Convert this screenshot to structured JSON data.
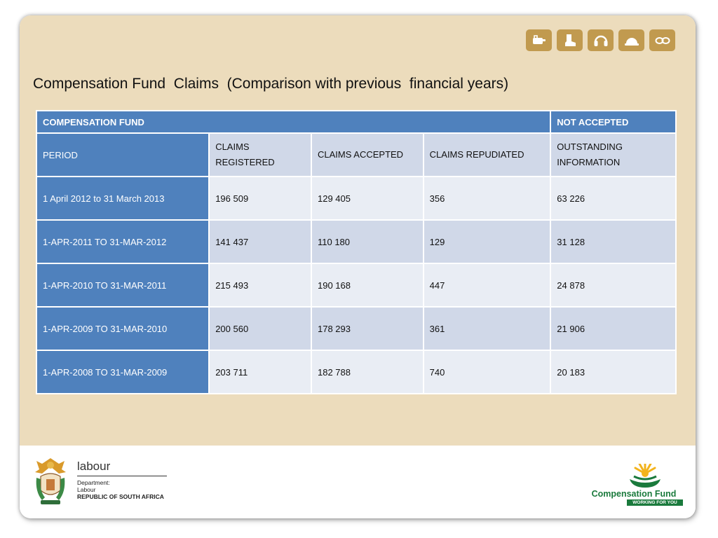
{
  "title": "Compensation Fund  Claims  (Comparison with previous  financial years)",
  "header_icons": [
    "hand-tool-icon",
    "boot-icon",
    "ear-muffs-icon",
    "hard-hat-icon",
    "safety-goggles-icon"
  ],
  "table": {
    "group_header_left": "COMPENSATION FUND",
    "group_header_right": "NOT ACCEPTED",
    "period_label": "PERIOD",
    "columns": [
      "CLAIMS REGISTERED",
      "CLAIMS ACCEPTED",
      "CLAIMS REPUDIATED",
      "OUTSTANDING INFORMATION"
    ],
    "rows": [
      {
        "period": "1 April 2012 to 31 March 2013",
        "registered": "196 509",
        "accepted": "129 405",
        "repudiated": "356",
        "outstanding": "63 226"
      },
      {
        "period": "1-APR-2011 TO 31-MAR-2012",
        "registered": "141 437",
        "accepted": "110 180",
        "repudiated": "129",
        "outstanding": "31 128"
      },
      {
        "period": "1-APR-2010 TO 31-MAR-2011",
        "registered": "215 493",
        "accepted": "190 168",
        "repudiated": "447",
        "outstanding": "24 878"
      },
      {
        "period": "1-APR-2009 TO 31-MAR-2010",
        "registered": "200 560",
        "accepted": "178 293",
        "repudiated": "361",
        "outstanding": "21 906"
      },
      {
        "period": "1-APR-2008 TO 31-MAR-2009",
        "registered": "203 711",
        "accepted": "182 788",
        "repudiated": "740",
        "outstanding": "20 183"
      }
    ]
  },
  "footer": {
    "dol_name": "labour",
    "dol_line1": "Department:",
    "dol_line2": "Labour",
    "dol_country": "REPUBLIC OF SOUTH AFRICA",
    "cf_name": "Compensation Fund",
    "cf_tagline": "WORKING FOR YOU"
  },
  "colors": {
    "background": "#ecdcbc",
    "header_blue": "#4f81bd",
    "row_light": "#e9edf4",
    "row_dark": "#d0d8e8",
    "icon_gold": "#c19a4f",
    "cf_green": "#1a7a3c"
  }
}
